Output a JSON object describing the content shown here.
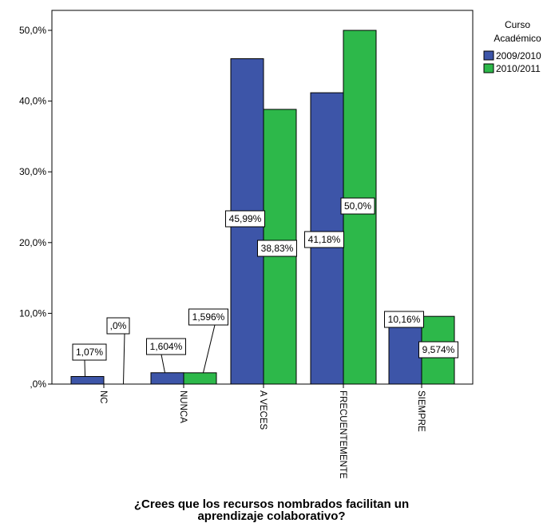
{
  "chart_data": {
    "type": "bar",
    "title": "",
    "xlabel_lines": [
      "¿Crees que los recursos nombrados facilitan un",
      "aprendizaje colaborativo?"
    ],
    "ylabel": "",
    "ylim": [
      0,
      52.5
    ],
    "yticks": [
      0,
      10,
      20,
      30,
      40,
      50
    ],
    "ytick_labels": [
      ",0%",
      "10,0%",
      "20,0%",
      "30,0%",
      "40,0%",
      "50,0%"
    ],
    "categories": [
      "NC",
      "NUNCA",
      "A VECES",
      "FRECUENTEMENTE",
      "SIEMPRE"
    ],
    "legend": {
      "title_lines": [
        "Curso",
        "Académico"
      ],
      "position": "right-top"
    },
    "series": [
      {
        "name": "2009/2010",
        "color": "#3d55a8",
        "values": [
          1.07,
          1.604,
          45.99,
          41.18,
          10.16
        ],
        "labels": [
          "1,07%",
          "1,604%",
          "45,99%",
          "41,18%",
          "10,16%"
        ]
      },
      {
        "name": "2010/2011",
        "color": "#2db84a",
        "values": [
          0.0,
          1.596,
          38.83,
          50.0,
          9.574
        ],
        "labels": [
          ",0%",
          "1,596%",
          "38,83%",
          "50,0%",
          "9,574%"
        ]
      }
    ]
  }
}
